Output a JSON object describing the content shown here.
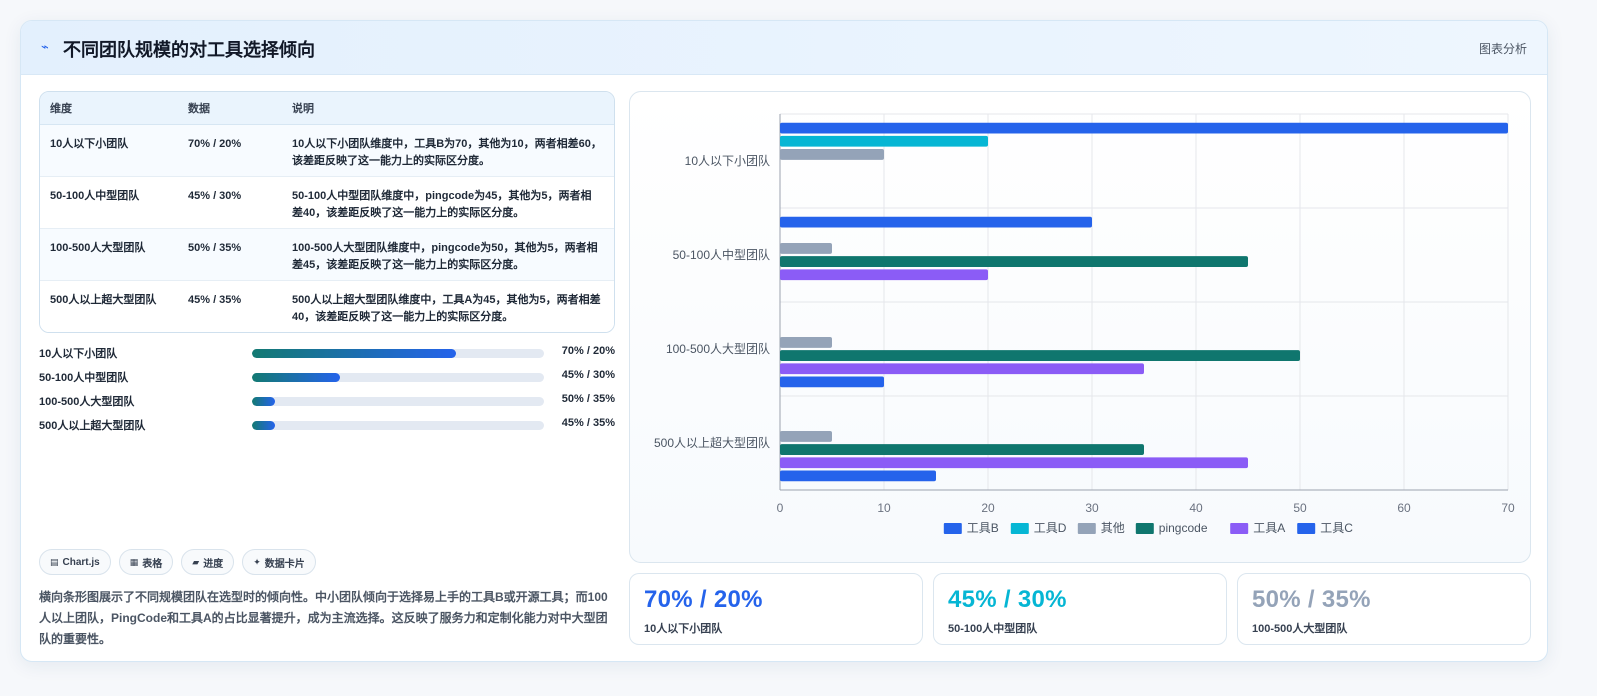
{
  "header": {
    "title": "不同团队规模的对工具选择倾向",
    "tag": "图表分析"
  },
  "table": {
    "headers": [
      "维度",
      "数据",
      "说明"
    ],
    "rows": [
      {
        "dim": "10人以下小团队",
        "data": "70% / 20%",
        "desc": "10人以下小团队维度中，工具B为70，其他为10，两者相差60，该差距反映了这一能力上的实际区分度。"
      },
      {
        "dim": "50-100人中型团队",
        "data": "45% / 30%",
        "desc": "50-100人中型团队维度中，pingcode为45，其他为5，两者相差40，该差距反映了这一能力上的实际区分度。"
      },
      {
        "dim": "100-500人大型团队",
        "data": "50% / 35%",
        "desc": "100-500人大型团队维度中，pingcode为50，其他为5，两者相差45，该差距反映了这一能力上的实际区分度。"
      },
      {
        "dim": "500人以上超大型团队",
        "data": "45% / 35%",
        "desc": "500人以上超大型团队维度中，工具A为45，其他为5，两者相差40，该差距反映了这一能力上的实际区分度。"
      }
    ]
  },
  "progress": [
    {
      "label": "10人以下小团队",
      "value": "70% / 20%",
      "fill": 0.7
    },
    {
      "label": "50-100人中型团队",
      "value": "45% / 30%",
      "fill": 0.3
    },
    {
      "label": "100-500人大型团队",
      "value": "50% / 35%",
      "fill": 0.08
    },
    {
      "label": "500人以上超大型团队",
      "value": "45% / 35%",
      "fill": 0.08
    }
  ],
  "chips": [
    {
      "icon": "▤",
      "label": "Chart.js"
    },
    {
      "icon": "▦",
      "label": "表格"
    },
    {
      "icon": "▰",
      "label": "进度"
    },
    {
      "icon": "✦",
      "label": "数据卡片"
    }
  ],
  "summary": "横向条形图展示了不同规模团队在选型时的倾向性。中小团队倾向于选择易上手的工具B或开源工具；而100人以上团队，PingCode和工具A的占比显著提升，成为主流选择。这反映了服务力和定制化能力对中大型团队的重要性。",
  "stats": [
    {
      "value": "70% / 20%",
      "label": "10人以下小团队",
      "color": "#2563eb"
    },
    {
      "value": "45% / 30%",
      "label": "50-100人中型团队",
      "color": "#06b6d4"
    },
    {
      "value": "50% / 35%",
      "label": "100-500人大型团队",
      "color": "#94a3b8"
    }
  ],
  "chart_data": {
    "type": "bar",
    "orientation": "horizontal",
    "categories": [
      "10人以下小团队",
      "50-100人中型团队",
      "100-500人大型团队",
      "500人以上超大型团队"
    ],
    "series": [
      {
        "name": "工具B",
        "color": "#2563eb",
        "values": [
          70,
          30,
          null,
          null
        ]
      },
      {
        "name": "工具D",
        "color": "#06b6d4",
        "values": [
          20,
          null,
          null,
          null
        ]
      },
      {
        "name": "其他",
        "color": "#94a3b8",
        "values": [
          10,
          5,
          5,
          5
        ]
      },
      {
        "name": "pingcode",
        "color": "#0f766e",
        "values": [
          null,
          45,
          50,
          35
        ]
      },
      {
        "name": "工具A",
        "color": "#8b5cf6",
        "values": [
          null,
          20,
          35,
          45
        ]
      },
      {
        "name": "工具C",
        "color": "#2563eb",
        "values": [
          null,
          null,
          10,
          15
        ]
      }
    ],
    "xlim": [
      0,
      70
    ],
    "xticks": [
      0,
      10,
      20,
      30,
      40,
      50,
      60,
      70
    ],
    "grid": true,
    "legend": "bottom"
  }
}
